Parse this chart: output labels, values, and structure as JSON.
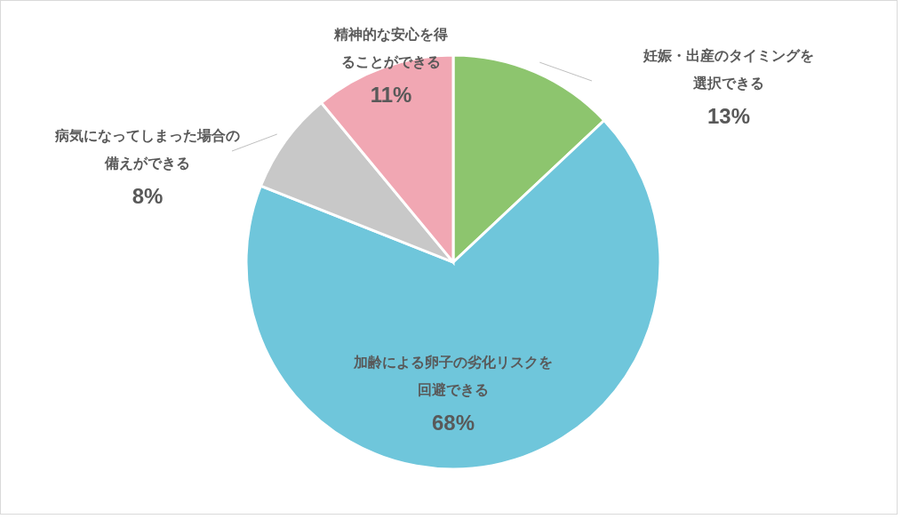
{
  "chart_data": {
    "type": "pie",
    "categories": [
      "妊娠・出産のタイミングを選択できる",
      "加齢による卵子の劣化リスクを回避できる",
      "病気になってしまった場合の備えができる",
      "精神的な安心を得ることができる"
    ],
    "values": [
      13,
      68,
      8,
      11
    ],
    "value_labels": [
      "13%",
      "68%",
      "8%",
      "11%"
    ],
    "colors": [
      "#8dc56e",
      "#6fc6db",
      "#c8c8c8",
      "#f1a7b3"
    ],
    "legend": false
  }
}
